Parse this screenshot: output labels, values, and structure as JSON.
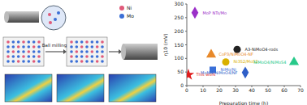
{
  "diagram": {
    "process": [
      "Ball milling"
    ],
    "legend": [
      {
        "name": "Ni",
        "color": "#e05a7a"
      },
      {
        "name": "Mo",
        "color": "#3b6fd6"
      }
    ]
  },
  "chart_data": {
    "type": "scatter",
    "x_label": "Preparation time (h)",
    "y_label": "η10 (mV)",
    "xlim": [
      0,
      70
    ],
    "xticks": [
      0,
      10,
      20,
      30,
      40,
      50,
      60,
      70
    ],
    "ylim": [
      0,
      300
    ],
    "yticks": [
      0,
      50,
      100,
      150,
      200,
      250,
      300
    ],
    "grid": false,
    "series": [
      {
        "name": "MoP NTs/Mo",
        "color": "#9b30c8",
        "marker": "diamond",
        "x": [
          5
        ],
        "values": [
          268
        ]
      },
      {
        "name": "A3-NiMoO4-rods",
        "color": "#222222",
        "marker": "circle",
        "x": [
          31
        ],
        "values": [
          133
        ]
      },
      {
        "name": "CoP3/NiMoO4-NF",
        "color": "#e8892a",
        "marker": "triangle",
        "x": [
          15
        ],
        "values": [
          114
        ]
      },
      {
        "name": "Ni3S2/MoS2",
        "color": "#d9b000",
        "marker": "circle",
        "x": [
          24
        ],
        "values": [
          87
        ]
      },
      {
        "name": "NiMo/Ni",
        "color": "#3a6fd8",
        "marker": "square",
        "x": [
          16
        ],
        "values": [
          58
        ]
      },
      {
        "name": "MoNi4-NiMoO4/NF",
        "color": "#2f5fc8",
        "marker": "diamond",
        "x": [
          36
        ],
        "values": [
          48
        ]
      },
      {
        "name": "NiMoO4/NiMoS4",
        "color": "#27c98a",
        "marker": "triangle",
        "x": [
          66
        ],
        "values": [
          86
        ]
      },
      {
        "name": "This work",
        "color": "#e01b1b",
        "marker": "star",
        "x": [
          1
        ],
        "values": [
          40
        ]
      }
    ]
  }
}
